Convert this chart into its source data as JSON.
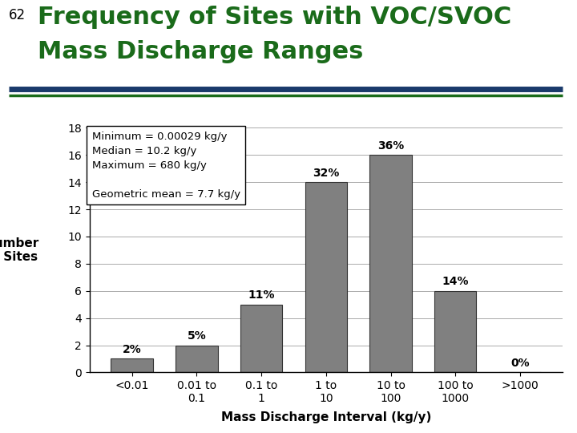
{
  "title_line1": "Frequency of Sites with VOC/SVOC",
  "title_line2": "Mass Discharge Ranges",
  "slide_number": "62",
  "categories": [
    "<0.01",
    "0.01 to\n0.1",
    "0.1 to\n1",
    "1 to\n10",
    "10 to\n100",
    "100 to\n1000",
    ">1000"
  ],
  "values": [
    1,
    2,
    5,
    14,
    16,
    6,
    0
  ],
  "percentages": [
    "2%",
    "5%",
    "11%",
    "32%",
    "36%",
    "14%",
    "0%"
  ],
  "bar_color": "#808080",
  "bar_edge_color": "#333333",
  "xlabel": "Mass Discharge Interval (kg/y)",
  "ylabel_line1": "Number",
  "ylabel_line2": "of Sites",
  "ylim": [
    0,
    18
  ],
  "yticks": [
    0,
    2,
    4,
    6,
    8,
    10,
    12,
    14,
    16,
    18
  ],
  "title_color": "#1a6b1a",
  "slide_num_color": "#000000",
  "bg_color": "#ffffff",
  "ann_text": "Minimum = 0.00029 kg/y\nMedian = 10.2 kg/y\nMaximum = 680 kg/y\n\nGeometric mean = 7.7 kg/y",
  "sep_color_thick": "#1a3a6b",
  "sep_color_thin": "#1a6b1a",
  "xlabel_fontsize": 11,
  "ylabel_fontsize": 11,
  "title_fontsize": 22,
  "tick_fontsize": 10,
  "pct_fontsize": 10
}
